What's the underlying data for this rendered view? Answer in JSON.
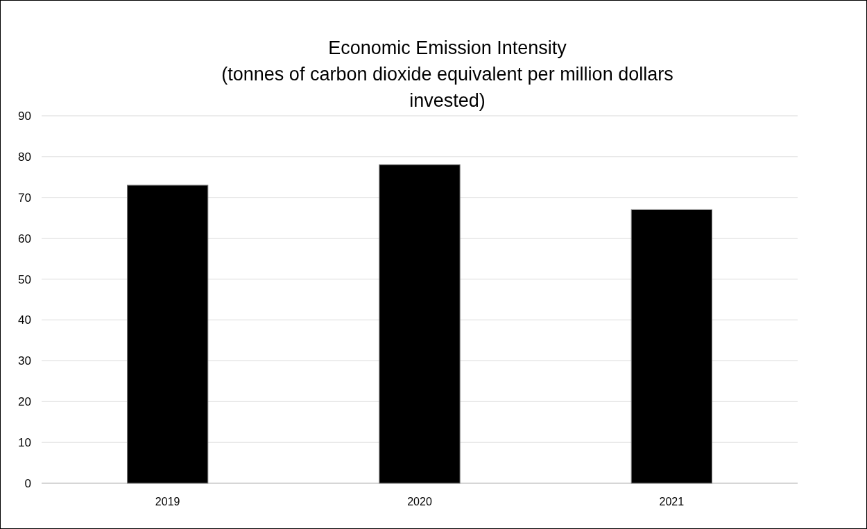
{
  "chart_data": {
    "type": "bar",
    "title": "Economic Emission Intensity\n(tonnes of carbon dioxide equivalent per million dollars invested)",
    "categories": [
      "2019",
      "2020",
      "2021"
    ],
    "values": [
      73,
      78,
      67
    ],
    "color": "#000000",
    "ylim": [
      0,
      90
    ],
    "yticks": [
      0,
      10,
      20,
      30,
      40,
      50,
      60,
      70,
      80,
      90
    ],
    "grid": "y"
  }
}
